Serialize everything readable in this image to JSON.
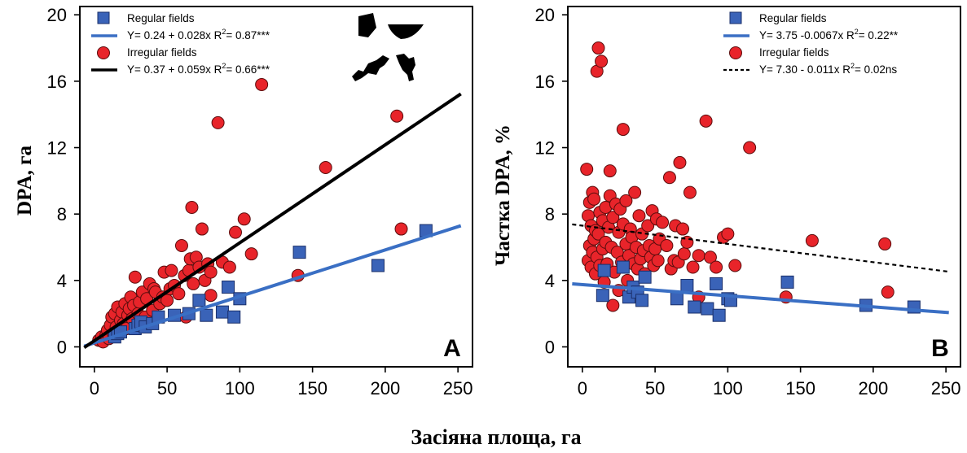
{
  "xlabel": "Засіяна площа, га",
  "chart_data": [
    {
      "type": "scatter",
      "panel": "A",
      "ylabel": "DPA, га",
      "xlim": [
        -10,
        260
      ],
      "ylim": [
        -1.2,
        20.5
      ],
      "xticks": [
        0,
        50,
        100,
        150,
        200,
        250
      ],
      "yticks": [
        0,
        4,
        8,
        12,
        16,
        20
      ],
      "grid": false,
      "legend_position": "top-left",
      "series": [
        {
          "name": "Regular fields",
          "marker": "square",
          "color": "#3a63b8",
          "points": [
            [
              14,
              0.6
            ],
            [
              16,
              0.8
            ],
            [
              18,
              0.9
            ],
            [
              28,
              1.1
            ],
            [
              30,
              1.3
            ],
            [
              32,
              1.5
            ],
            [
              35,
              1.2
            ],
            [
              40,
              1.4
            ],
            [
              44,
              1.8
            ],
            [
              55,
              1.9
            ],
            [
              65,
              2.0
            ],
            [
              72,
              2.8
            ],
            [
              77,
              1.9
            ],
            [
              88,
              2.1
            ],
            [
              92,
              3.6
            ],
            [
              96,
              1.8
            ],
            [
              100,
              2.9
            ],
            [
              141,
              5.7
            ],
            [
              195,
              4.9
            ],
            [
              228,
              7.0
            ]
          ]
        },
        {
          "name": "Irregular fields",
          "marker": "circle",
          "color": "#e8242a",
          "points": [
            [
              3,
              0.4
            ],
            [
              5,
              0.6
            ],
            [
              6,
              0.3
            ],
            [
              8,
              0.7
            ],
            [
              9,
              1.0
            ],
            [
              10,
              0.5
            ],
            [
              11,
              1.3
            ],
            [
              12,
              1.8
            ],
            [
              13,
              0.8
            ],
            [
              14,
              2.0
            ],
            [
              15,
              1.2
            ],
            [
              16,
              2.4
            ],
            [
              17,
              0.9
            ],
            [
              18,
              1.6
            ],
            [
              19,
              2.1
            ],
            [
              20,
              1.4
            ],
            [
              21,
              2.6
            ],
            [
              22,
              1.1
            ],
            [
              23,
              1.9
            ],
            [
              24,
              2.3
            ],
            [
              25,
              3.0
            ],
            [
              26,
              1.7
            ],
            [
              27,
              2.5
            ],
            [
              28,
              4.2
            ],
            [
              30,
              2.0
            ],
            [
              31,
              2.7
            ],
            [
              33,
              3.3
            ],
            [
              35,
              1.8
            ],
            [
              36,
              2.9
            ],
            [
              38,
              3.8
            ],
            [
              40,
              2.2
            ],
            [
              41,
              3.5
            ],
            [
              42,
              3.3
            ],
            [
              45,
              2.6
            ],
            [
              47,
              3.0
            ],
            [
              48,
              4.5
            ],
            [
              50,
              2.8
            ],
            [
              52,
              3.5
            ],
            [
              53,
              4.6
            ],
            [
              55,
              3.7
            ],
            [
              58,
              3.2
            ],
            [
              60,
              6.1
            ],
            [
              62,
              4.3
            ],
            [
              63,
              1.8
            ],
            [
              65,
              4.6
            ],
            [
              66,
              5.3
            ],
            [
              67,
              8.4
            ],
            [
              68,
              3.8
            ],
            [
              70,
              5.4
            ],
            [
              72,
              4.8
            ],
            [
              74,
              7.1
            ],
            [
              76,
              4.0
            ],
            [
              78,
              5.0
            ],
            [
              80,
              4.5
            ],
            [
              80,
              3.1
            ],
            [
              85,
              13.5
            ],
            [
              88,
              5.1
            ],
            [
              93,
              4.8
            ],
            [
              97,
              6.9
            ],
            [
              103,
              7.7
            ],
            [
              108,
              5.6
            ],
            [
              115,
              15.8
            ],
            [
              140,
              4.3
            ],
            [
              159,
              10.8
            ],
            [
              208,
              13.9
            ],
            [
              211,
              7.1
            ]
          ]
        }
      ],
      "fits": [
        {
          "label": "Y= 0.24 + 0.028x",
          "r2": "0.87***",
          "intercept": 0.24,
          "slope": 0.028,
          "x_range": [
            -7,
            252
          ],
          "color": "#3a6fc4",
          "style": "solid"
        },
        {
          "label": "Y= 0.37 + 0.059x",
          "r2": "0.66***",
          "intercept": 0.37,
          "slope": 0.059,
          "x_range": [
            -7,
            252
          ],
          "color": "#000000",
          "style": "solid"
        }
      ]
    },
    {
      "type": "scatter",
      "panel": "B",
      "ylabel": "Частка DPA, %",
      "xlim": [
        -10,
        260
      ],
      "ylim": [
        -1.2,
        20.5
      ],
      "xticks": [
        0,
        50,
        100,
        150,
        200,
        250
      ],
      "yticks": [
        0,
        4,
        8,
        12,
        16,
        20
      ],
      "grid": false,
      "legend_position": "top-right",
      "series": [
        {
          "name": "Regular fields",
          "marker": "square",
          "color": "#3a63b8",
          "points": [
            [
              14,
              3.1
            ],
            [
              15,
              4.6
            ],
            [
              28,
              4.8
            ],
            [
              32,
              3.0
            ],
            [
              35,
              3.6
            ],
            [
              38,
              3.3
            ],
            [
              41,
              2.8
            ],
            [
              43,
              4.2
            ],
            [
              65,
              2.9
            ],
            [
              72,
              3.7
            ],
            [
              77,
              2.4
            ],
            [
              86,
              2.3
            ],
            [
              92,
              3.8
            ],
            [
              94,
              1.9
            ],
            [
              100,
              2.9
            ],
            [
              102,
              2.8
            ],
            [
              141,
              3.9
            ],
            [
              195,
              2.5
            ],
            [
              228,
              2.4
            ]
          ]
        },
        {
          "name": "Irregular fields",
          "marker": "circle",
          "color": "#e8242a",
          "points": [
            [
              3,
              10.7
            ],
            [
              4,
              7.9
            ],
            [
              4,
              5.2
            ],
            [
              5,
              6.1
            ],
            [
              5,
              8.7
            ],
            [
              6,
              4.8
            ],
            [
              6,
              7.3
            ],
            [
              7,
              9.3
            ],
            [
              7,
              5.7
            ],
            [
              8,
              6.5
            ],
            [
              8,
              8.9
            ],
            [
              9,
              4.4
            ],
            [
              9,
              7.0
            ],
            [
              10,
              5.4
            ],
            [
              10,
              16.6
            ],
            [
              11,
              18.0
            ],
            [
              11,
              6.8
            ],
            [
              12,
              4.9
            ],
            [
              12,
              8.1
            ],
            [
              13,
              17.2
            ],
            [
              14,
              5.9
            ],
            [
              14,
              7.6
            ],
            [
              15,
              3.9
            ],
            [
              16,
              6.3
            ],
            [
              16,
              8.4
            ],
            [
              17,
              5.0
            ],
            [
              18,
              7.2
            ],
            [
              19,
              10.6
            ],
            [
              19,
              9.1
            ],
            [
              20,
              6.0
            ],
            [
              21,
              2.5
            ],
            [
              21,
              7.8
            ],
            [
              22,
              4.5
            ],
            [
              23,
              8.6
            ],
            [
              24,
              5.7
            ],
            [
              25,
              6.9
            ],
            [
              25,
              3.4
            ],
            [
              26,
              8.3
            ],
            [
              27,
              5.1
            ],
            [
              28,
              13.1
            ],
            [
              28,
              7.4
            ],
            [
              30,
              6.2
            ],
            [
              30,
              8.8
            ],
            [
              31,
              4.0
            ],
            [
              32,
              5.5
            ],
            [
              33,
              7.1
            ],
            [
              34,
              6.6
            ],
            [
              35,
              5.0
            ],
            [
              36,
              9.3
            ],
            [
              37,
              6.0
            ],
            [
              38,
              4.7
            ],
            [
              39,
              7.9
            ],
            [
              40,
              5.3
            ],
            [
              41,
              6.8
            ],
            [
              42,
              5.8
            ],
            [
              43,
              4.4
            ],
            [
              45,
              7.3
            ],
            [
              46,
              6.1
            ],
            [
              47,
              5.4
            ],
            [
              48,
              8.2
            ],
            [
              49,
              4.9
            ],
            [
              50,
              5.9
            ],
            [
              51,
              7.7
            ],
            [
              52,
              5.2
            ],
            [
              53,
              6.5
            ],
            [
              55,
              7.5
            ],
            [
              58,
              6.1
            ],
            [
              60,
              10.2
            ],
            [
              61,
              4.7
            ],
            [
              63,
              5.2
            ],
            [
              64,
              7.3
            ],
            [
              66,
              5.1
            ],
            [
              67,
              11.1
            ],
            [
              69,
              7.1
            ],
            [
              70,
              5.6
            ],
            [
              72,
              6.3
            ],
            [
              74,
              9.3
            ],
            [
              76,
              4.8
            ],
            [
              80,
              3.0
            ],
            [
              80,
              5.5
            ],
            [
              85,
              13.6
            ],
            [
              88,
              5.4
            ],
            [
              92,
              4.8
            ],
            [
              97,
              6.6
            ],
            [
              100,
              6.8
            ],
            [
              105,
              4.9
            ],
            [
              115,
              12.0
            ],
            [
              140,
              3.0
            ],
            [
              158,
              6.4
            ],
            [
              208,
              6.2
            ],
            [
              210,
              3.3
            ]
          ]
        }
      ],
      "fits": [
        {
          "label": "Y= 3.75 -0.0067x",
          "r2": "0.22**",
          "intercept": 3.75,
          "slope": -0.0067,
          "x_range": [
            -7,
            252
          ],
          "color": "#3a6fc4",
          "style": "solid"
        },
        {
          "label": "Y= 7.30 - 0.011x",
          "r2": "0.02ns",
          "intercept": 7.3,
          "slope": -0.011,
          "x_range": [
            -7,
            252
          ],
          "color": "#000000",
          "style": "dashed"
        }
      ]
    }
  ],
  "insets": {
    "description_icons": [
      "regular-field-shape-icon",
      "regular-field-shape-icon",
      "irregular-field-shape-icon",
      "irregular-field-shape-icon"
    ],
    "color": "#000000"
  }
}
